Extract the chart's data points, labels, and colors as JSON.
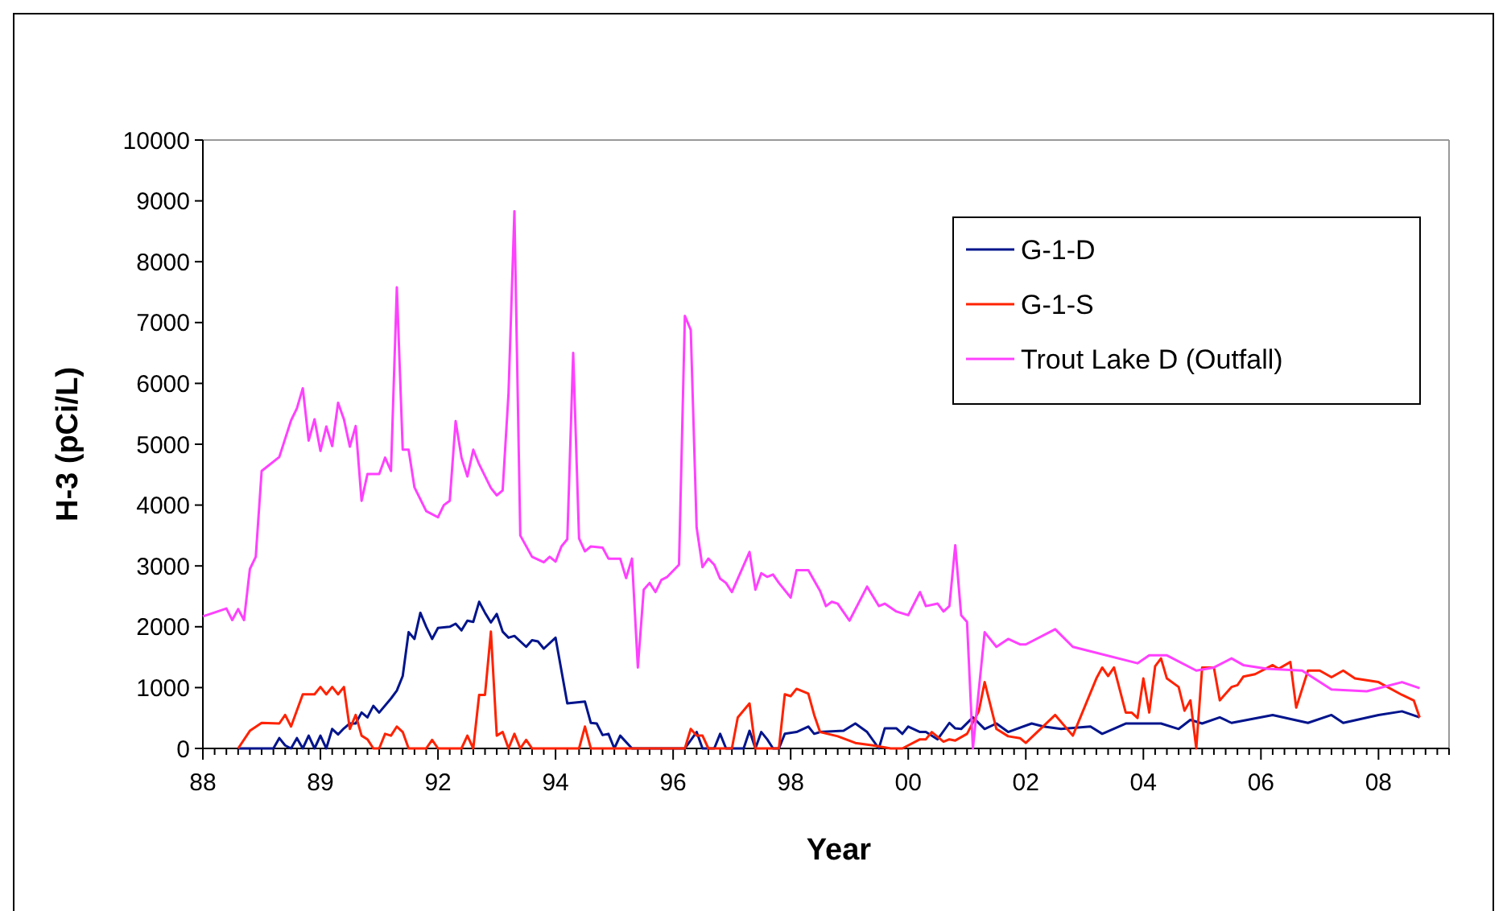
{
  "chart_data": {
    "type": "line",
    "xlabel": "Year",
    "ylabel": "H-3 (pCi/L)",
    "ylim": [
      0,
      10000
    ],
    "yticks": [
      0,
      1000,
      2000,
      3000,
      4000,
      5000,
      6000,
      7000,
      8000,
      9000,
      10000
    ],
    "grid": false,
    "legend": "top right",
    "marker": "none",
    "line_style": "solid",
    "categories": [
      "88",
      null,
      null,
      null,
      null,
      null,
      null,
      null,
      null,
      null,
      null,
      null,
      null,
      null,
      null,
      null,
      null,
      null,
      null,
      null,
      "89",
      null,
      null,
      null,
      null,
      null,
      null,
      null,
      null,
      null,
      null,
      null,
      null,
      null,
      null,
      null,
      null,
      null,
      null,
      null,
      "92",
      null,
      null,
      null,
      null,
      null,
      null,
      null,
      null,
      null,
      null,
      null,
      null,
      null,
      null,
      null,
      null,
      null,
      null,
      null,
      "94",
      null,
      null,
      null,
      null,
      null,
      null,
      null,
      null,
      null,
      null,
      null,
      null,
      null,
      null,
      null,
      null,
      null,
      null,
      null,
      "96",
      null,
      null,
      null,
      null,
      null,
      null,
      null,
      null,
      null,
      null,
      null,
      null,
      null,
      null,
      null,
      null,
      null,
      null,
      null,
      "98",
      null,
      null,
      null,
      null,
      null,
      null,
      null,
      null,
      null,
      null,
      null,
      null,
      null,
      null,
      null,
      null,
      null,
      null,
      null,
      "00",
      null,
      null,
      null,
      null,
      null,
      null,
      null,
      null,
      null,
      null,
      null,
      null,
      null,
      null,
      null,
      null,
      null,
      null,
      null,
      "02",
      null,
      null,
      null,
      null,
      null,
      null,
      null,
      null,
      null,
      null,
      null,
      null,
      null,
      null,
      null,
      null,
      null,
      null,
      null,
      "04",
      null,
      null,
      null,
      null,
      null,
      null,
      null,
      null,
      null,
      null,
      null,
      null,
      null,
      null,
      null,
      null,
      null,
      null,
      null,
      "06",
      null,
      null,
      null,
      null,
      null,
      null,
      null,
      null,
      null,
      null,
      null,
      null,
      null,
      null,
      null,
      null,
      null,
      null,
      null,
      "08",
      null,
      null,
      null,
      null,
      null,
      null,
      null,
      null,
      null,
      null,
      null,
      null
    ],
    "series": [
      {
        "name": "G-1-D",
        "color": "#00148c",
        "values": [
          null,
          null,
          null,
          null,
          null,
          null,
          0,
          null,
          null,
          null,
          null,
          null,
          0,
          170,
          50,
          0,
          170,
          0,
          210,
          0,
          210,
          0,
          320,
          230,
          330,
          410,
          410,
          590,
          510,
          700,
          590,
          null,
          820,
          950,
          1190,
          1910,
          1800,
          2230,
          2000,
          1800,
          1980,
          null,
          2000,
          2050,
          1940,
          2100,
          2080,
          2410,
          2230,
          2070,
          2210,
          1920,
          1820,
          1850,
          null,
          1670,
          1780,
          1760,
          1640,
          null,
          1820,
          null,
          740,
          750,
          null,
          770,
          420,
          410,
          220,
          240,
          0,
          210,
          null,
          0,
          null,
          null,
          null,
          null,
          null,
          null,
          null,
          null,
          0,
          null,
          270,
          0,
          null,
          0,
          240,
          0,
          null,
          null,
          0,
          290,
          0,
          270,
          150,
          0,
          0,
          240,
          null,
          270,
          null,
          360,
          240,
          270,
          null,
          null,
          null,
          290,
          null,
          410,
          null,
          270,
          null,
          0,
          330,
          null,
          330,
          240,
          360,
          null,
          270,
          270,
          null,
          150,
          null,
          420,
          330,
          320,
          null,
          510,
          null,
          320,
          null,
          410,
          null,
          270,
          null,
          null,
          null,
          410,
          null,
          360,
          null,
          null,
          320,
          null,
          null,
          null,
          null,
          360,
          null,
          240,
          null,
          null,
          null,
          410,
          null,
          null,
          null,
          null,
          null,
          410,
          null,
          null,
          320,
          null,
          470,
          null,
          410,
          null,
          null,
          510,
          null,
          420,
          null,
          null,
          null,
          null,
          null,
          null,
          550,
          null,
          null,
          null,
          null,
          null,
          420,
          null,
          null,
          null,
          550,
          null,
          420,
          null,
          null,
          null,
          null,
          null,
          550,
          null,
          null,
          null,
          610,
          null,
          null,
          510,
          null,
          null,
          null,
          null,
          null
        ]
      },
      {
        "name": "G-1-S",
        "color": "#ff2200",
        "values": [
          null,
          null,
          null,
          null,
          null,
          null,
          0,
          null,
          290,
          null,
          420,
          null,
          null,
          410,
          550,
          360,
          null,
          890,
          null,
          890,
          1010,
          890,
          1010,
          890,
          1010,
          320,
          550,
          210,
          150,
          0,
          0,
          240,
          210,
          360,
          270,
          0,
          null,
          null,
          0,
          140,
          0,
          null,
          null,
          null,
          0,
          210,
          0,
          880,
          880,
          1920,
          210,
          270,
          0,
          240,
          0,
          140,
          0,
          null,
          null,
          null,
          null,
          null,
          null,
          null,
          0,
          360,
          0,
          null,
          null,
          null,
          null,
          null,
          null,
          null,
          null,
          null,
          null,
          null,
          null,
          null,
          null,
          null,
          0,
          320,
          210,
          210,
          0,
          null,
          null,
          null,
          0,
          510,
          null,
          740,
          0,
          null,
          null,
          null,
          0,
          890,
          860,
          980,
          null,
          900,
          550,
          270,
          null,
          null,
          200,
          null,
          null,
          90,
          null,
          null,
          50,
          null,
          null,
          0,
          null,
          0,
          null,
          null,
          150,
          150,
          270,
          null,
          110,
          150,
          130,
          null,
          240,
          null,
          610,
          1090,
          null,
          320,
          null,
          200,
          null,
          170,
          90,
          null,
          null,
          null,
          null,
          550,
          null,
          null,
          210,
          null,
          null,
          null,
          1150,
          1330,
          1190,
          1330,
          null,
          590,
          590,
          500,
          1150,
          590,
          1350,
          1480,
          1150,
          null,
          1010,
          620,
          790,
          0,
          1330,
          null,
          1330,
          790,
          null,
          1010,
          1040,
          1180,
          null,
          1220,
          null,
          null,
          1370,
          1310,
          null,
          1420,
          670,
          null,
          1280,
          null,
          1280,
          null,
          1170,
          null,
          1280,
          null,
          1150,
          null,
          null,
          null,
          1090,
          null,
          null,
          null,
          880,
          null,
          790,
          510,
          null,
          null,
          null,
          null,
          null
        ]
      },
      {
        "name": "Trout Lake D (Outfall)",
        "color": "#ff40ff",
        "values": [
          2170,
          null,
          null,
          null,
          2300,
          2110,
          2290,
          2110,
          2950,
          3150,
          4560,
          null,
          null,
          4790,
          null,
          5390,
          5590,
          5920,
          5060,
          5410,
          4890,
          5290,
          4970,
          5680,
          5410,
          4960,
          5300,
          4070,
          4510,
          null,
          4510,
          4780,
          4560,
          7580,
          4910,
          4910,
          4290,
          null,
          3900,
          null,
          3800,
          4000,
          4070,
          5380,
          4780,
          4470,
          4910,
          4670,
          null,
          4280,
          4160,
          4240,
          5840,
          8830,
          3500,
          null,
          3150,
          null,
          3060,
          3150,
          3070,
          3320,
          3440,
          6500,
          3450,
          3240,
          3320,
          null,
          3300,
          3120,
          null,
          3120,
          2800,
          3120,
          1330,
          2610,
          2720,
          2570,
          2770,
          2820,
          null,
          3020,
          7110,
          6880,
          3630,
          2980,
          3120,
          3020,
          2790,
          2720,
          2570,
          null,
          null,
          3230,
          2610,
          2880,
          2820,
          2860,
          2720,
          null,
          2480,
          2930,
          null,
          2930,
          null,
          2590,
          2340,
          2410,
          2380,
          null,
          2100,
          null,
          null,
          2660,
          null,
          2340,
          2380,
          null,
          2250,
          null,
          2190,
          null,
          2570,
          2340,
          null,
          2380,
          2250,
          2340,
          3340,
          2190,
          2080,
          0,
          null,
          1910,
          null,
          1670,
          null,
          1800,
          null,
          1710,
          1710,
          null,
          null,
          null,
          null,
          1960,
          null,
          null,
          1670,
          null,
          null,
          null,
          null,
          null,
          null,
          null,
          null,
          null,
          null,
          1400,
          null,
          1530,
          null,
          null,
          1530,
          null,
          null,
          null,
          null,
          1280,
          null,
          null,
          1330,
          null,
          null,
          1480,
          null,
          1370,
          null,
          null,
          null,
          1310,
          null,
          null,
          null,
          null,
          null,
          1280,
          null,
          null,
          null,
          null,
          970,
          null,
          null,
          null,
          null,
          null,
          940,
          null,
          null,
          null,
          null,
          null,
          1090,
          null,
          null,
          990,
          null,
          null,
          null,
          null,
          null
        ]
      }
    ]
  }
}
